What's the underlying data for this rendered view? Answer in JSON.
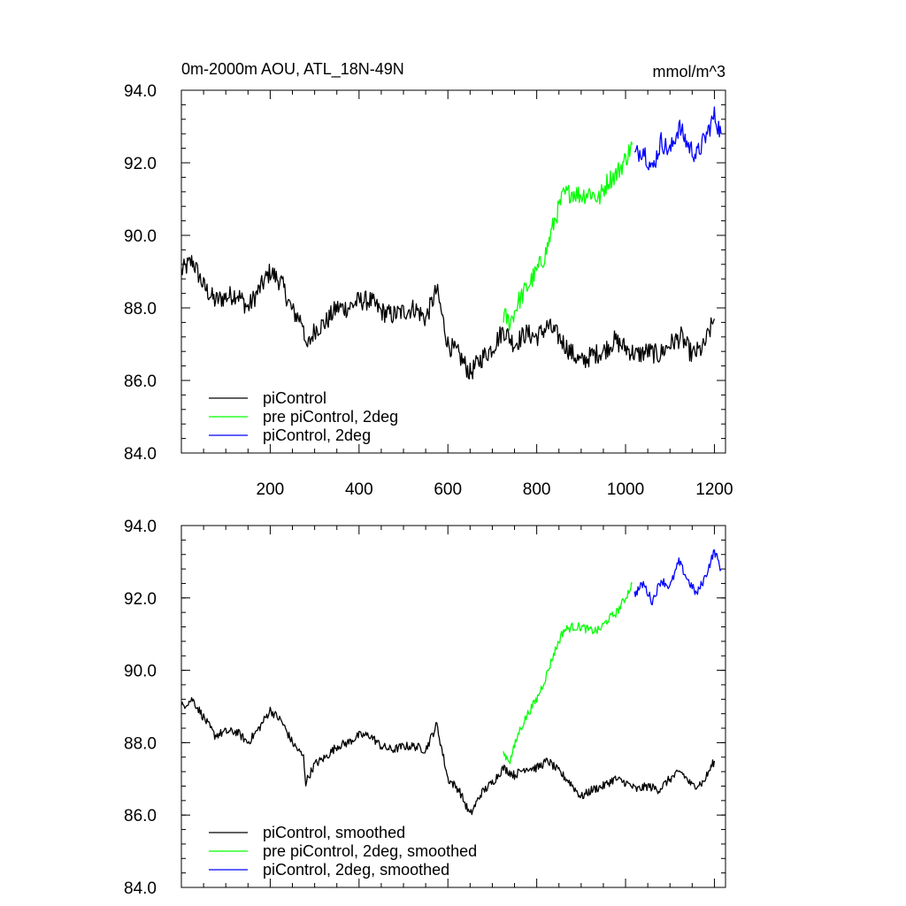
{
  "chart_data": [
    {
      "type": "line",
      "title": "0m-2000m AOU, ATL_18N-49N",
      "unit_label": "mmol/m^3",
      "xlim": [
        0,
        1225
      ],
      "ylim": [
        84.0,
        94.0
      ],
      "x_ticks": [
        200,
        400,
        600,
        800,
        1000,
        1200
      ],
      "x_tick_labels": [
        "200",
        "400",
        "600",
        "800",
        "1000",
        "1200"
      ],
      "y_ticks": [
        84.0,
        86.0,
        88.0,
        90.0,
        92.0,
        94.0
      ],
      "y_tick_labels": [
        "84.0",
        "86.0",
        "88.0",
        "90.0",
        "92.0",
        "94.0"
      ],
      "legend_position": "bottom-left",
      "series": [
        {
          "name": "piControl",
          "color": "#000000",
          "x": [
            0,
            25,
            50,
            75,
            100,
            125,
            150,
            175,
            200,
            225,
            250,
            275,
            280,
            300,
            325,
            350,
            375,
            400,
            425,
            450,
            475,
            500,
            525,
            550,
            575,
            600,
            625,
            650,
            675,
            700,
            725,
            750,
            775,
            800,
            825,
            850,
            875,
            900,
            925,
            950,
            975,
            1000,
            1025,
            1050,
            1075,
            1100,
            1125,
            1150,
            1175,
            1200
          ],
          "y": [
            89.0,
            89.3,
            88.6,
            88.2,
            88.3,
            88.4,
            88.0,
            88.5,
            89.0,
            88.7,
            87.9,
            87.6,
            86.8,
            87.4,
            87.6,
            88.0,
            88.0,
            88.2,
            88.2,
            87.9,
            87.8,
            87.9,
            88.0,
            87.7,
            88.5,
            87.0,
            86.7,
            86.2,
            86.6,
            86.9,
            87.4,
            87.0,
            87.3,
            87.2,
            87.5,
            87.2,
            86.8,
            86.5,
            86.7,
            86.8,
            87.1,
            86.9,
            86.7,
            86.8,
            86.7,
            87.0,
            87.2,
            86.7,
            86.9,
            87.7
          ]
        },
        {
          "name": "pre piControl, 2deg",
          "color": "#00ff00",
          "x": [
            725,
            740,
            760,
            780,
            800,
            820,
            840,
            860,
            880,
            900,
            920,
            940,
            960,
            980,
            1000,
            1015
          ],
          "y": [
            87.8,
            87.6,
            88.2,
            88.6,
            89.0,
            89.5,
            90.4,
            91.1,
            91.2,
            91.1,
            91.2,
            91.0,
            91.5,
            91.7,
            92.1,
            92.5
          ]
        },
        {
          "name": "piControl, 2deg",
          "color": "#0000ff",
          "x": [
            1020,
            1040,
            1060,
            1080,
            1100,
            1120,
            1140,
            1160,
            1180,
            1200,
            1215
          ],
          "y": [
            92.2,
            92.4,
            91.8,
            92.6,
            92.3,
            93.0,
            92.5,
            92.2,
            92.7,
            93.3,
            92.8
          ]
        }
      ]
    },
    {
      "type": "line",
      "title": "",
      "xlim": [
        0,
        1225
      ],
      "ylim": [
        84.0,
        94.0
      ],
      "x_ticks": [
        200,
        400,
        600,
        800,
        1000,
        1200
      ],
      "y_ticks": [
        84.0,
        86.0,
        88.0,
        90.0,
        92.0,
        94.0
      ],
      "y_tick_labels": [
        "84.0",
        "86.0",
        "88.0",
        "90.0",
        "92.0",
        "94.0"
      ],
      "legend_position": "bottom-left",
      "series": [
        {
          "name": "piControl, smoothed",
          "color": "#000000",
          "x": [
            0,
            25,
            50,
            75,
            100,
            125,
            150,
            175,
            200,
            225,
            250,
            275,
            280,
            300,
            325,
            350,
            375,
            400,
            425,
            450,
            475,
            500,
            525,
            550,
            575,
            600,
            625,
            650,
            675,
            700,
            725,
            750,
            775,
            800,
            825,
            850,
            875,
            900,
            925,
            950,
            975,
            1000,
            1025,
            1050,
            1075,
            1100,
            1125,
            1150,
            1175,
            1200
          ],
          "y": [
            89.0,
            89.2,
            88.7,
            88.2,
            88.3,
            88.3,
            88.0,
            88.4,
            88.9,
            88.6,
            88.0,
            87.6,
            86.9,
            87.4,
            87.6,
            87.9,
            88.0,
            88.2,
            88.2,
            87.9,
            87.8,
            87.9,
            87.9,
            87.8,
            88.5,
            87.0,
            86.7,
            86.0,
            86.6,
            86.9,
            87.3,
            87.1,
            87.3,
            87.3,
            87.5,
            87.2,
            86.9,
            86.5,
            86.7,
            86.8,
            87.0,
            86.9,
            86.7,
            86.8,
            86.7,
            87.0,
            87.2,
            86.8,
            86.9,
            87.5
          ]
        },
        {
          "name": "pre piControl, 2deg, smoothed",
          "color": "#00ff00",
          "x": [
            725,
            740,
            760,
            780,
            800,
            820,
            840,
            860,
            880,
            900,
            920,
            940,
            960,
            980,
            1000,
            1015
          ],
          "y": [
            87.7,
            87.5,
            88.3,
            88.8,
            89.2,
            89.8,
            90.5,
            91.1,
            91.2,
            91.2,
            91.1,
            91.1,
            91.4,
            91.6,
            92.0,
            92.4
          ]
        },
        {
          "name": "piControl, 2deg, smoothed",
          "color": "#0000ff",
          "x": [
            1020,
            1040,
            1060,
            1080,
            1100,
            1120,
            1140,
            1160,
            1180,
            1200,
            1215
          ],
          "y": [
            92.1,
            92.4,
            91.9,
            92.5,
            92.3,
            93.0,
            92.5,
            92.1,
            92.6,
            93.3,
            92.8
          ]
        }
      ]
    }
  ]
}
